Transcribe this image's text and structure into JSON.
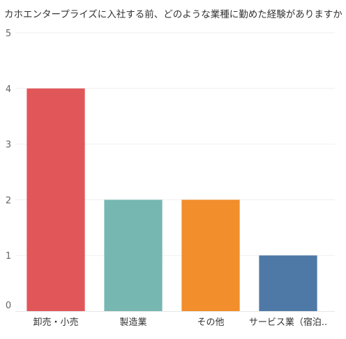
{
  "chart_data": {
    "type": "bar",
    "title": "カホエンタープライズに入社する前、どのような業種に勤めた経験がありますか..",
    "categories": [
      "卸売・小売",
      "製造業",
      "その他",
      "サービス業（宿泊.."
    ],
    "values": [
      4,
      2,
      2,
      1
    ],
    "colors": [
      "#e15759",
      "#76b7b2",
      "#f28e2b",
      "#4e79a7"
    ],
    "yticks": [
      "0",
      "1",
      "2",
      "3",
      "4",
      "5"
    ],
    "ylim": [
      0,
      5
    ],
    "xlabel": "",
    "ylabel": "",
    "grid": true
  }
}
